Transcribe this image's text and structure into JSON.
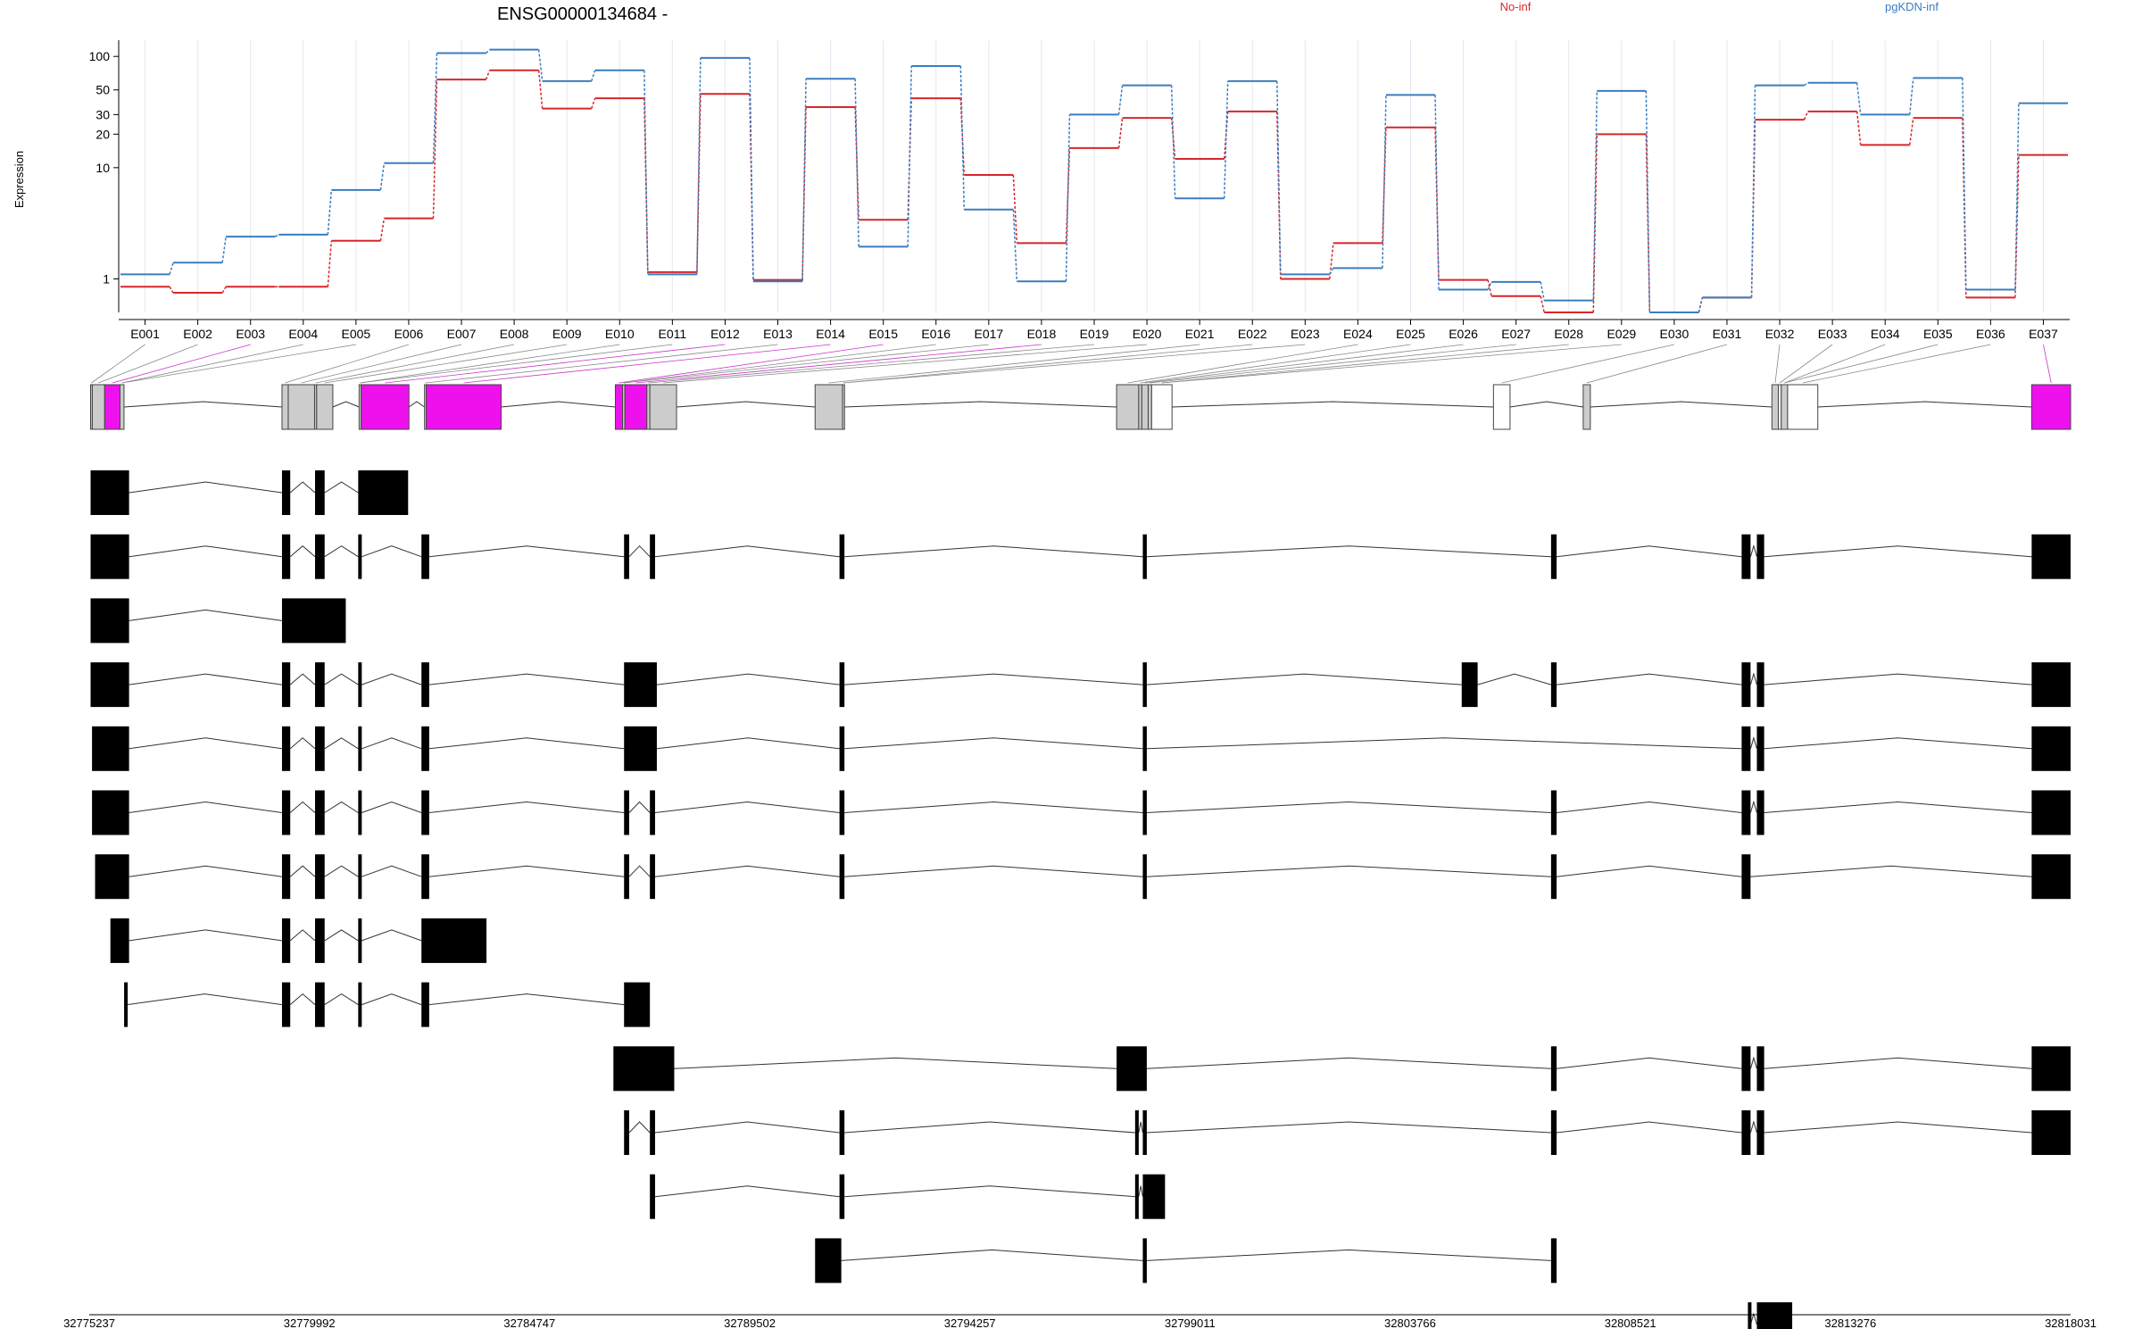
{
  "chart_data": {
    "type": "line",
    "title": "ENSG00000134684 -",
    "ylabel": "Expression",
    "y_scale": "log",
    "y_ticks": [
      1,
      10,
      20,
      30,
      50,
      100
    ],
    "ylim": [
      0.5,
      140
    ],
    "categories": [
      "E001",
      "E002",
      "E003",
      "E004",
      "E005",
      "E006",
      "E007",
      "E008",
      "E009",
      "E010",
      "E011",
      "E012",
      "E013",
      "E014",
      "E015",
      "E016",
      "E017",
      "E018",
      "E019",
      "E020",
      "E021",
      "E022",
      "E023",
      "E024",
      "E025",
      "E026",
      "E027",
      "E028",
      "E029",
      "E030",
      "E031",
      "E032",
      "E033",
      "E034",
      "E035",
      "E036",
      "E037"
    ],
    "series": [
      {
        "name": "No-inf",
        "color": "#d62728",
        "values": [
          0.85,
          0.75,
          0.85,
          0.85,
          2.2,
          3.5,
          62,
          75,
          34,
          42,
          1.15,
          46,
          0.98,
          35,
          3.4,
          42,
          8.6,
          2.1,
          15,
          28,
          12,
          32,
          1.0,
          2.1,
          23,
          0.98,
          0.7,
          0.5,
          20,
          0.5,
          0.68,
          27,
          32,
          16,
          28,
          0.68,
          13
        ]
      },
      {
        "name": "pgKDN-inf",
        "color": "#3a7dbf",
        "values": [
          1.1,
          1.4,
          2.4,
          2.5,
          6.3,
          11,
          107,
          115,
          60,
          75,
          1.1,
          97,
          0.95,
          63,
          1.95,
          82,
          4.2,
          0.95,
          30,
          55,
          5.3,
          60,
          1.1,
          1.25,
          45,
          0.8,
          0.94,
          0.64,
          49,
          0.5,
          0.68,
          55,
          58,
          30,
          64,
          0.8,
          38
        ]
      }
    ],
    "gene_model": {
      "genomic_ticks": [
        "32775237",
        "32779992",
        "32784747",
        "32789502",
        "32794257",
        "32799011",
        "32803766",
        "32808521",
        "32813276",
        "32818031"
      ],
      "range": [
        32775237,
        32818031
      ],
      "exon_bins": [
        [
          32775266,
          32775303,
          "gray"
        ],
        [
          32775303,
          32775570,
          "gray"
        ],
        [
          32775570,
          32775901,
          "magenta"
        ],
        [
          32775901,
          32775988,
          "gray"
        ],
        [
          32779400,
          32779535,
          "gray"
        ],
        [
          32779535,
          32780104,
          "gray"
        ],
        [
          32780104,
          32780149,
          "gray"
        ],
        [
          32780149,
          32780498,
          "gray"
        ],
        [
          32781065,
          32781110,
          "gray"
        ],
        [
          32781110,
          32782142,
          "magenta"
        ],
        [
          32782478,
          32782514,
          "gray"
        ],
        [
          32782514,
          32784133,
          "magenta"
        ],
        [
          32786600,
          32786756,
          "magenta"
        ],
        [
          32786756,
          32786806,
          "gray"
        ],
        [
          32786806,
          32787281,
          "magenta"
        ],
        [
          32787281,
          32787345,
          "gray"
        ],
        [
          32787345,
          32787922,
          "gray"
        ],
        [
          32790914,
          32791507,
          "gray"
        ],
        [
          32791507,
          32791550,
          "gray"
        ],
        [
          32797426,
          32797904,
          "gray"
        ],
        [
          32797904,
          32797971,
          "gray"
        ],
        [
          32797971,
          32798108,
          "gray"
        ],
        [
          32798108,
          32798183,
          "gray"
        ],
        [
          32798183,
          32798623,
          "white"
        ],
        [
          32805566,
          32805924,
          "white"
        ],
        [
          32807504,
          32807658,
          "gray"
        ],
        [
          32811580,
          32811721,
          "gray"
        ],
        [
          32811721,
          32811781,
          "white"
        ],
        [
          32811781,
          32811919,
          "gray"
        ],
        [
          32811919,
          32812571,
          "white"
        ],
        [
          32817190,
          32818031,
          "magenta"
        ]
      ],
      "transcripts": [
        [
          [
            32775266,
            32776097
          ],
          [
            32779400,
            32779578
          ],
          [
            32780114,
            32780321
          ],
          [
            32781046,
            32782124
          ]
        ],
        [
          [
            32775266,
            32776097
          ],
          [
            32779400,
            32779578
          ],
          [
            32780114,
            32780321
          ],
          [
            32781046,
            32781123
          ],
          [
            32782412,
            32782579
          ],
          [
            32786788,
            32786898
          ],
          [
            32787346,
            32787458
          ],
          [
            32791441,
            32791548
          ],
          [
            32797992,
            32798078
          ],
          [
            32806810,
            32806930
          ],
          [
            32810926,
            32811118
          ],
          [
            32811255,
            32811412
          ],
          [
            32817190,
            32818031
          ]
        ],
        [
          [
            32775266,
            32776097
          ],
          [
            32779400,
            32780778
          ]
        ],
        [
          [
            32775266,
            32776097
          ],
          [
            32779400,
            32779578
          ],
          [
            32780114,
            32780321
          ],
          [
            32781046,
            32781123
          ],
          [
            32782412,
            32782579
          ],
          [
            32786788,
            32787496
          ],
          [
            32791441,
            32791548
          ],
          [
            32797992,
            32798078
          ],
          [
            32804880,
            32805224
          ],
          [
            32806810,
            32806930
          ],
          [
            32810926,
            32811118
          ],
          [
            32811255,
            32811412
          ],
          [
            32817190,
            32818031
          ]
        ],
        [
          [
            32775297,
            32776097
          ],
          [
            32779400,
            32779578
          ],
          [
            32780114,
            32780321
          ],
          [
            32781046,
            32781123
          ],
          [
            32782412,
            32782579
          ],
          [
            32786788,
            32787496
          ],
          [
            32791441,
            32791548
          ],
          [
            32797992,
            32798078
          ],
          [
            32810926,
            32811118
          ],
          [
            32811255,
            32811412
          ],
          [
            32817190,
            32818031
          ]
        ],
        [
          [
            32775297,
            32776097
          ],
          [
            32779400,
            32779578
          ],
          [
            32780114,
            32780321
          ],
          [
            32781046,
            32781123
          ],
          [
            32782412,
            32782579
          ],
          [
            32786788,
            32786898
          ],
          [
            32787346,
            32787458
          ],
          [
            32791441,
            32791548
          ],
          [
            32797992,
            32798078
          ],
          [
            32806810,
            32806930
          ],
          [
            32810926,
            32811118
          ],
          [
            32811255,
            32811412
          ],
          [
            32817190,
            32818031
          ]
        ],
        [
          [
            32775363,
            32776097
          ],
          [
            32779400,
            32779578
          ],
          [
            32780114,
            32780321
          ],
          [
            32781046,
            32781123
          ],
          [
            32782412,
            32782579
          ],
          [
            32786788,
            32786898
          ],
          [
            32787346,
            32787458
          ],
          [
            32791441,
            32791548
          ],
          [
            32797992,
            32798078
          ],
          [
            32806810,
            32806930
          ],
          [
            32810926,
            32811118
          ],
          [
            32817190,
            32818031
          ]
        ],
        [
          [
            32775694,
            32776097
          ],
          [
            32779400,
            32779578
          ],
          [
            32780114,
            32780321
          ],
          [
            32781046,
            32781123
          ],
          [
            32782412,
            32783817
          ]
        ],
        [
          [
            32775990,
            32776058
          ],
          [
            32779400,
            32779578
          ],
          [
            32780114,
            32780321
          ],
          [
            32781046,
            32781123
          ],
          [
            32782412,
            32782579
          ],
          [
            32786788,
            32787346
          ]
        ],
        [
          [
            32786558,
            32787872
          ],
          [
            32797426,
            32798078
          ],
          [
            32806810,
            32806930
          ],
          [
            32810926,
            32811118
          ],
          [
            32811255,
            32811412
          ],
          [
            32817190,
            32818031
          ]
        ],
        [
          [
            32786788,
            32786898
          ],
          [
            32787346,
            32787458
          ],
          [
            32791441,
            32791548
          ],
          [
            32797826,
            32797904
          ],
          [
            32797992,
            32798078
          ],
          [
            32806810,
            32806930
          ],
          [
            32810926,
            32811118
          ],
          [
            32811255,
            32811412
          ],
          [
            32817190,
            32818031
          ]
        ],
        [
          [
            32787346,
            32787458
          ],
          [
            32791441,
            32791548
          ],
          [
            32797826,
            32797904
          ],
          [
            32797992,
            32798472
          ]
        ],
        [
          [
            32790914,
            32791480
          ],
          [
            32797992,
            32798078
          ],
          [
            32806810,
            32806930
          ]
        ],
        [
          [
            32811061,
            32811118
          ],
          [
            32811255,
            32812018
          ]
        ]
      ]
    }
  }
}
